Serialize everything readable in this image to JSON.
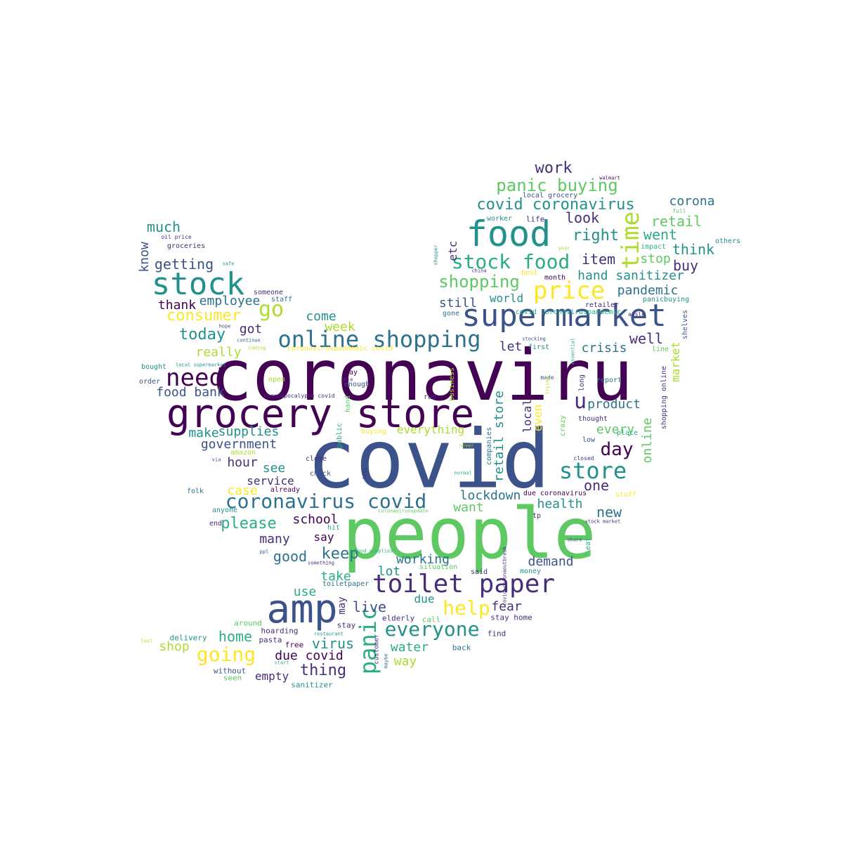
{
  "wordcloud": {
    "palette": {
      "c1": "#440154",
      "c2": "#472d7b",
      "c3": "#3b528b",
      "c4": "#2c728e",
      "c5": "#21918c",
      "c6": "#28ae80",
      "c7": "#5ec962",
      "c8": "#addc30",
      "c9": "#fde725"
    },
    "words": [
      {
        "text": "coronaviru"
      },
      {
        "text": "covid"
      },
      {
        "text": "people"
      },
      {
        "text": "grocery store"
      },
      {
        "text": "supermarket"
      },
      {
        "text": "food"
      },
      {
        "text": "stock"
      },
      {
        "text": "amp"
      },
      {
        "text": "toilet paper"
      },
      {
        "text": "price"
      },
      {
        "text": "stock food"
      },
      {
        "text": "online shopping"
      },
      {
        "text": "coronavirus covid"
      },
      {
        "text": "need"
      },
      {
        "text": "store"
      },
      {
        "text": "panic buying"
      },
      {
        "text": "covid coronavirus"
      },
      {
        "text": "work"
      },
      {
        "text": "time"
      },
      {
        "text": "shopping"
      },
      {
        "text": "go"
      },
      {
        "text": "consumer"
      },
      {
        "text": "today"
      },
      {
        "text": "panic"
      },
      {
        "text": "everyone"
      },
      {
        "text": "help"
      },
      {
        "text": "going"
      },
      {
        "text": "day"
      },
      {
        "text": "u"
      },
      {
        "text": "corona"
      },
      {
        "text": "retail"
      },
      {
        "text": "went"
      },
      {
        "text": "right"
      },
      {
        "text": "look"
      },
      {
        "text": "much"
      },
      {
        "text": "know"
      },
      {
        "text": "getting"
      },
      {
        "text": "thank"
      },
      {
        "text": "employee"
      },
      {
        "text": "etc"
      },
      {
        "text": "think"
      },
      {
        "text": "item"
      },
      {
        "text": "buy"
      },
      {
        "text": "stop"
      },
      {
        "text": "hand sanitizer"
      },
      {
        "text": "pandemic"
      },
      {
        "text": "world"
      },
      {
        "text": "still"
      },
      {
        "text": "come"
      },
      {
        "text": "week"
      },
      {
        "text": "got"
      },
      {
        "text": "really"
      },
      {
        "text": "let"
      },
      {
        "text": "crisis"
      },
      {
        "text": "well"
      },
      {
        "text": "market"
      },
      {
        "text": "food bank"
      },
      {
        "text": "make"
      },
      {
        "text": "supplies"
      },
      {
        "text": "government"
      },
      {
        "text": "hour"
      },
      {
        "text": "see"
      },
      {
        "text": "service"
      },
      {
        "text": "case"
      },
      {
        "text": "everything"
      },
      {
        "text": "retail store"
      },
      {
        "text": "local"
      },
      {
        "text": "even"
      },
      {
        "text": "product"
      },
      {
        "text": "every"
      },
      {
        "text": "online"
      },
      {
        "text": "one"
      },
      {
        "text": "lockdown"
      },
      {
        "text": "health"
      },
      {
        "text": "new"
      },
      {
        "text": "want"
      },
      {
        "text": "school"
      },
      {
        "text": "please"
      },
      {
        "text": "many"
      },
      {
        "text": "say"
      },
      {
        "text": "good"
      },
      {
        "text": "keep"
      },
      {
        "text": "working"
      },
      {
        "text": "demand"
      },
      {
        "text": "lot"
      },
      {
        "text": "take"
      },
      {
        "text": "use"
      },
      {
        "text": "may"
      },
      {
        "text": "live"
      },
      {
        "text": "due"
      },
      {
        "text": "fear"
      },
      {
        "text": "home"
      },
      {
        "text": "shop"
      },
      {
        "text": "virus"
      },
      {
        "text": "water"
      },
      {
        "text": "due covid"
      },
      {
        "text": "thing"
      },
      {
        "text": "way"
      },
      {
        "text": "empty"
      },
      {
        "text": "stay home"
      },
      {
        "text": "find"
      },
      {
        "text": "back"
      },
      {
        "text": "elderly"
      },
      {
        "text": "call"
      },
      {
        "text": "stay"
      },
      {
        "text": "pasta"
      },
      {
        "text": "free"
      },
      {
        "text": "hoarding"
      },
      {
        "text": "around"
      },
      {
        "text": "delivery"
      },
      {
        "text": "without"
      },
      {
        "text": "seen"
      },
      {
        "text": "sanitizer"
      },
      {
        "text": "customer"
      },
      {
        "text": "maybe"
      },
      {
        "text": "restaurant"
      },
      {
        "text": "start"
      },
      {
        "text": "last"
      },
      {
        "text": "walmart"
      },
      {
        "text": "local grocery"
      },
      {
        "text": "worker"
      },
      {
        "text": "life"
      },
      {
        "text": "full"
      },
      {
        "text": "others"
      },
      {
        "text": "impact"
      },
      {
        "text": "shopper"
      },
      {
        "text": "year"
      },
      {
        "text": "china"
      },
      {
        "text": "best"
      },
      {
        "text": "month"
      },
      {
        "text": "panicbuying"
      },
      {
        "text": "retailer"
      },
      {
        "text": "gone"
      },
      {
        "text": "aisle"
      },
      {
        "text": "shelves"
      },
      {
        "text": "covid coronaviruspandemic"
      },
      {
        "text": "stocking"
      },
      {
        "text": "first"
      },
      {
        "text": "line"
      },
      {
        "text": "essential"
      },
      {
        "text": "made"
      },
      {
        "text": "long"
      },
      {
        "text": "report"
      },
      {
        "text": "shopping online"
      },
      {
        "text": "oil price"
      },
      {
        "text": "groceries"
      },
      {
        "text": "safe"
      },
      {
        "text": "someone"
      },
      {
        "text": "staff"
      },
      {
        "text": "hope"
      },
      {
        "text": "continue"
      },
      {
        "text": "coming"
      },
      {
        "text": "coronaviruspandemic covid"
      },
      {
        "text": "bought"
      },
      {
        "text": "local supermarket"
      },
      {
        "text": "order"
      },
      {
        "text": "open"
      },
      {
        "text": "pay"
      },
      {
        "text": "able"
      },
      {
        "text": "enough"
      },
      {
        "text": "coronapocalypse covid"
      },
      {
        "text": "run"
      },
      {
        "text": "business"
      },
      {
        "text": "hand"
      },
      {
        "text": "public"
      },
      {
        "text": "buying"
      },
      {
        "text": "companies"
      },
      {
        "text": "trying"
      },
      {
        "text": "crazy"
      },
      {
        "text": "thought"
      },
      {
        "text": "place"
      },
      {
        "text": "low"
      },
      {
        "text": "closed"
      },
      {
        "text": "never"
      },
      {
        "text": "amazon"
      },
      {
        "text": "via"
      },
      {
        "text": "close"
      },
      {
        "text": "check"
      },
      {
        "text": "left"
      },
      {
        "text": "normal"
      },
      {
        "text": "folk"
      },
      {
        "text": "already"
      },
      {
        "text": "anyone"
      },
      {
        "text": "end"
      },
      {
        "text": "hit"
      },
      {
        "text": "due coronavirus"
      },
      {
        "text": "stuff"
      },
      {
        "text": "tp"
      },
      {
        "text": "coronavirusupdate"
      },
      {
        "text": "stock market"
      },
      {
        "text": "share"
      },
      {
        "text": "eat"
      },
      {
        "text": "ppl"
      },
      {
        "text": "something"
      },
      {
        "text": "situation"
      },
      {
        "text": "money"
      },
      {
        "text": "covid coronaoutbreak"
      },
      {
        "text": "toiletpaper"
      },
      {
        "text": "said"
      },
      {
        "text": "food supplies"
      }
    ]
  }
}
